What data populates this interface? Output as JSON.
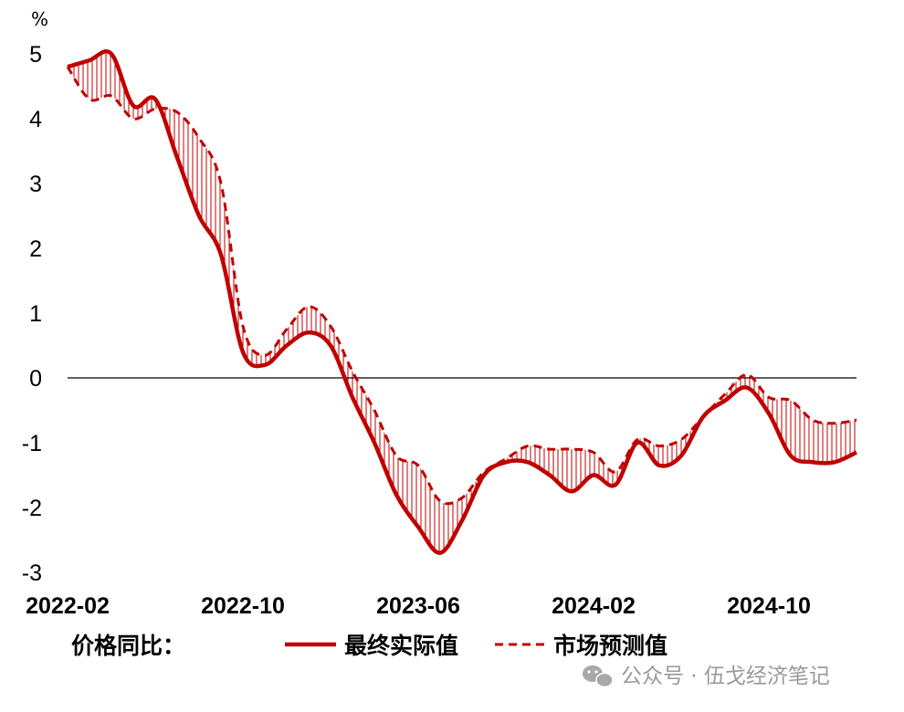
{
  "chart_data": {
    "type": "line",
    "unit": "%",
    "ylim": [
      -3,
      5
    ],
    "yticks": [
      "5",
      "4",
      "3",
      "2",
      "1",
      "0",
      "-1",
      "-2",
      "-3"
    ],
    "x_tick_labels": [
      "2022-02",
      "2022-10",
      "2023-06",
      "2024-02",
      "2024-10"
    ],
    "legend_title": "价格同比：",
    "grid": false,
    "colors": {
      "series": "#c00000",
      "fill_hatch": "#c00000",
      "zero_line": "#000000"
    },
    "series": [
      {
        "name": "最终实际值",
        "style": "solid",
        "points": [
          [
            "2022-02",
            4.8
          ],
          [
            "2022-03",
            4.9
          ],
          [
            "2022-04",
            5.0
          ],
          [
            "2022-05",
            4.2
          ],
          [
            "2022-06",
            4.3
          ],
          [
            "2022-07",
            3.4
          ],
          [
            "2022-08",
            2.5
          ],
          [
            "2022-09",
            1.9
          ],
          [
            "2022-10",
            0.4
          ],
          [
            "2022-11",
            0.2
          ],
          [
            "2022-12",
            0.5
          ],
          [
            "2023-01",
            0.7
          ],
          [
            "2023-02",
            0.5
          ],
          [
            "2023-03",
            -0.3
          ],
          [
            "2023-04",
            -1.0
          ],
          [
            "2023-05",
            -1.8
          ],
          [
            "2023-06",
            -2.3
          ],
          [
            "2023-07",
            -2.7
          ],
          [
            "2023-08",
            -2.2
          ],
          [
            "2023-09",
            -1.5
          ],
          [
            "2023-10",
            -1.3
          ],
          [
            "2023-11",
            -1.3
          ],
          [
            "2023-12",
            -1.5
          ],
          [
            "2024-01",
            -1.75
          ],
          [
            "2024-02",
            -1.5
          ],
          [
            "2024-03",
            -1.65
          ],
          [
            "2024-04",
            -1.0
          ],
          [
            "2024-05",
            -1.35
          ],
          [
            "2024-06",
            -1.2
          ],
          [
            "2024-07",
            -0.6
          ],
          [
            "2024-08",
            -0.35
          ],
          [
            "2024-09",
            -0.15
          ],
          [
            "2024-10",
            -0.55
          ],
          [
            "2024-11",
            -1.2
          ],
          [
            "2024-12",
            -1.3
          ],
          [
            "2025-01",
            -1.3
          ],
          [
            "2025-02",
            -1.15
          ]
        ]
      },
      {
        "name": "市场预测值",
        "style": "dashed",
        "points": [
          [
            "2022-02",
            4.8
          ],
          [
            "2022-03",
            4.3
          ],
          [
            "2022-04",
            4.35
          ],
          [
            "2022-05",
            4.0
          ],
          [
            "2022-06",
            4.15
          ],
          [
            "2022-07",
            4.1
          ],
          [
            "2022-08",
            3.7
          ],
          [
            "2022-09",
            3.0
          ],
          [
            "2022-10",
            0.8
          ],
          [
            "2022-11",
            0.35
          ],
          [
            "2022-12",
            0.75
          ],
          [
            "2023-01",
            1.1
          ],
          [
            "2023-02",
            0.8
          ],
          [
            "2023-03",
            0.1
          ],
          [
            "2023-04",
            -0.5
          ],
          [
            "2023-05",
            -1.2
          ],
          [
            "2023-06",
            -1.35
          ],
          [
            "2023-07",
            -1.9
          ],
          [
            "2023-08",
            -1.85
          ],
          [
            "2023-09",
            -1.45
          ],
          [
            "2023-10",
            -1.25
          ],
          [
            "2023-11",
            -1.05
          ],
          [
            "2023-12",
            -1.1
          ],
          [
            "2024-01",
            -1.1
          ],
          [
            "2024-02",
            -1.15
          ],
          [
            "2024-03",
            -1.45
          ],
          [
            "2024-04",
            -0.95
          ],
          [
            "2024-05",
            -1.05
          ],
          [
            "2024-06",
            -0.95
          ],
          [
            "2024-07",
            -0.6
          ],
          [
            "2024-08",
            -0.25
          ],
          [
            "2024-09",
            0.05
          ],
          [
            "2024-10",
            -0.3
          ],
          [
            "2024-11",
            -0.35
          ],
          [
            "2024-12",
            -0.65
          ],
          [
            "2025-01",
            -0.7
          ],
          [
            "2025-02",
            -0.65
          ]
        ]
      }
    ]
  },
  "watermark": {
    "icon": "wechat-icon",
    "text": "公众号 · 伍戈经济笔记"
  }
}
